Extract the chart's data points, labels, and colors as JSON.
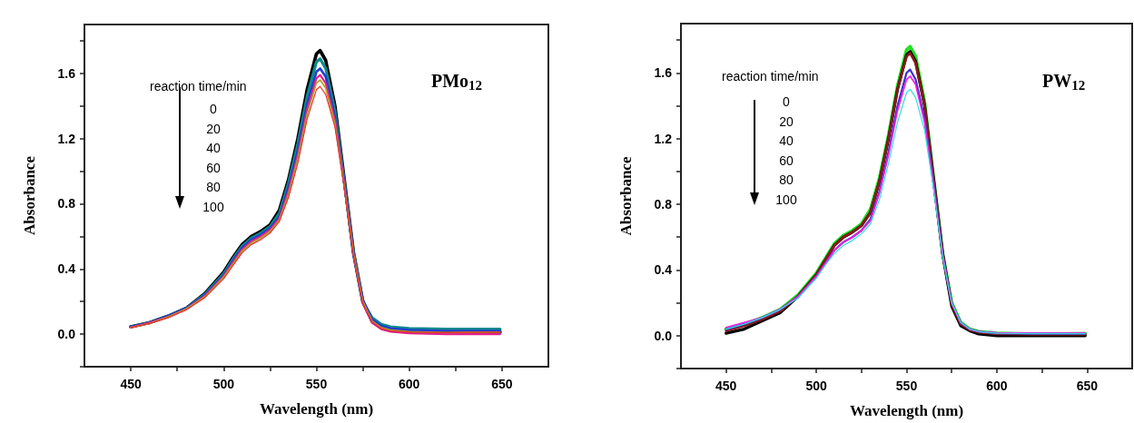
{
  "chart_data": [
    {
      "type": "line",
      "xlabel": "Wavelength (nm)",
      "ylabel": "Absorbance",
      "xlim": [
        425,
        675
      ],
      "ylim": [
        -0.2,
        1.9
      ],
      "xticks": [
        450,
        {
          "value": 475,
          "label": null
        },
        500,
        {
          "value": 525,
          "label": null
        },
        550,
        {
          "value": 575,
          "label": null
        },
        600,
        {
          "value": 625,
          "label": null
        },
        650
      ],
      "yticks": [
        {
          "value": -0.2,
          "label": null
        },
        {
          "value": 0,
          "label": "0.0"
        },
        {
          "value": 0.2,
          "label": null
        },
        {
          "value": 0.4,
          "label": "0.4"
        },
        {
          "value": 0.6,
          "label": null
        },
        {
          "value": 0.8,
          "label": "0.8"
        },
        {
          "value": 1.0,
          "label": null
        },
        {
          "value": 1.2,
          "label": "1.2"
        },
        {
          "value": 1.4,
          "label": null
        },
        {
          "value": 1.6,
          "label": "1.6"
        },
        {
          "value": 1.8,
          "label": null
        }
      ],
      "grid": false,
      "marker": "none",
      "line_style": "solid",
      "annotations": [
        "PMo$_{12}$",
        "reaction time/min",
        "0",
        "20",
        "40",
        "60",
        "80",
        "100"
      ],
      "x": [
        450,
        460,
        470,
        480,
        490,
        500,
        505,
        510,
        515,
        520,
        525,
        530,
        535,
        540,
        545,
        550,
        552,
        555,
        560,
        565,
        570,
        575,
        580,
        585,
        590,
        600,
        620,
        649
      ],
      "series": [
        {
          "color": "#000000",
          "values": [
            0.045,
            0.07,
            0.11,
            0.16,
            0.25,
            0.38,
            0.47,
            0.55,
            0.6,
            0.63,
            0.67,
            0.76,
            0.95,
            1.2,
            1.5,
            1.72,
            1.74,
            1.68,
            1.4,
            0.95,
            0.5,
            0.2,
            0.08,
            0.04,
            0.025,
            0.015,
            0.01,
            0.012
          ]
        },
        {
          "color": "#0e8a8c",
          "values": [
            0.045,
            0.07,
            0.11,
            0.16,
            0.245,
            0.37,
            0.46,
            0.54,
            0.59,
            0.62,
            0.66,
            0.74,
            0.93,
            1.17,
            1.46,
            1.67,
            1.69,
            1.63,
            1.37,
            0.94,
            0.5,
            0.2,
            0.1,
            0.06,
            0.045,
            0.035,
            0.03,
            0.03
          ]
        },
        {
          "color": "#1f3fd0",
          "values": [
            0.045,
            0.07,
            0.11,
            0.16,
            0.24,
            0.36,
            0.45,
            0.53,
            0.58,
            0.61,
            0.65,
            0.72,
            0.9,
            1.13,
            1.41,
            1.61,
            1.63,
            1.58,
            1.33,
            0.93,
            0.49,
            0.21,
            0.09,
            0.05,
            0.035,
            0.025,
            0.02,
            0.02
          ]
        },
        {
          "color": "#e0208c",
          "values": [
            0.04,
            0.07,
            0.105,
            0.155,
            0.235,
            0.355,
            0.44,
            0.52,
            0.57,
            0.6,
            0.64,
            0.71,
            0.88,
            1.1,
            1.38,
            1.57,
            1.59,
            1.54,
            1.31,
            0.92,
            0.49,
            0.19,
            0.07,
            0.03,
            0.015,
            0.005,
            0.0,
            0.0
          ]
        },
        {
          "color": "#b0a020",
          "values": [
            0.04,
            0.065,
            0.105,
            0.155,
            0.23,
            0.35,
            0.43,
            0.51,
            0.56,
            0.59,
            0.63,
            0.7,
            0.86,
            1.08,
            1.35,
            1.54,
            1.56,
            1.51,
            1.29,
            0.91,
            0.49,
            0.2,
            0.08,
            0.04,
            0.025,
            0.015,
            0.01,
            0.012
          ]
        },
        {
          "color": "#e83030",
          "values": [
            0.04,
            0.065,
            0.1,
            0.15,
            0.225,
            0.34,
            0.42,
            0.5,
            0.55,
            0.58,
            0.62,
            0.69,
            0.84,
            1.05,
            1.32,
            1.5,
            1.52,
            1.47,
            1.27,
            0.9,
            0.48,
            0.19,
            0.075,
            0.035,
            0.02,
            0.012,
            0.01,
            0.012
          ]
        }
      ]
    },
    {
      "type": "line",
      "xlabel": "Wavelength (nm)",
      "ylabel": "Absorbance",
      "xlim": [
        425,
        675
      ],
      "ylim": [
        -0.2,
        1.9
      ],
      "xticks": [
        450,
        {
          "value": 475,
          "label": null
        },
        500,
        {
          "value": 525,
          "label": null
        },
        550,
        {
          "value": 575,
          "label": null
        },
        600,
        {
          "value": 625,
          "label": null
        },
        650
      ],
      "yticks": [
        {
          "value": -0.2,
          "label": null
        },
        {
          "value": 0,
          "label": "0.0"
        },
        {
          "value": 0.2,
          "label": null
        },
        {
          "value": 0.4,
          "label": "0.4"
        },
        {
          "value": 0.6,
          "label": null
        },
        {
          "value": 0.8,
          "label": "0.8"
        },
        {
          "value": 1.0,
          "label": null
        },
        {
          "value": 1.2,
          "label": "1.2"
        },
        {
          "value": 1.4,
          "label": null
        },
        {
          "value": 1.6,
          "label": "1.6"
        },
        {
          "value": 1.8,
          "label": null
        }
      ],
      "grid": false,
      "marker": "none",
      "line_style": "solid",
      "annotations": [
        "PW$_{12}$",
        "reaction time/min",
        "0",
        "20",
        "40",
        "60",
        "80",
        "100"
      ],
      "x": [
        450,
        460,
        470,
        480,
        490,
        500,
        505,
        510,
        515,
        520,
        525,
        530,
        535,
        540,
        545,
        550,
        552,
        555,
        560,
        565,
        570,
        575,
        580,
        585,
        590,
        600,
        620,
        649
      ],
      "series": [
        {
          "color": "#20e020",
          "values": [
            0.04,
            0.07,
            0.11,
            0.16,
            0.25,
            0.38,
            0.47,
            0.56,
            0.61,
            0.64,
            0.68,
            0.77,
            0.96,
            1.22,
            1.52,
            1.74,
            1.76,
            1.7,
            1.42,
            0.96,
            0.5,
            0.2,
            0.08,
            0.04,
            0.025,
            0.015,
            0.01,
            0.012
          ]
        },
        {
          "color": "#000000",
          "values": [
            0.015,
            0.04,
            0.09,
            0.14,
            0.24,
            0.37,
            0.46,
            0.55,
            0.6,
            0.63,
            0.67,
            0.75,
            0.94,
            1.2,
            1.5,
            1.71,
            1.73,
            1.67,
            1.4,
            0.95,
            0.5,
            0.18,
            0.06,
            0.03,
            0.01,
            0.0,
            0.0,
            0.0
          ]
        },
        {
          "color": "#8b1a1a",
          "values": [
            0.03,
            0.06,
            0.1,
            0.15,
            0.24,
            0.37,
            0.46,
            0.55,
            0.6,
            0.63,
            0.67,
            0.75,
            0.94,
            1.2,
            1.5,
            1.7,
            1.72,
            1.66,
            1.4,
            0.95,
            0.5,
            0.19,
            0.07,
            0.035,
            0.02,
            0.01,
            0.008,
            0.008
          ]
        },
        {
          "color": "#3a30d0",
          "values": [
            0.04,
            0.07,
            0.11,
            0.16,
            0.24,
            0.36,
            0.44,
            0.52,
            0.57,
            0.6,
            0.64,
            0.71,
            0.88,
            1.12,
            1.4,
            1.6,
            1.62,
            1.56,
            1.32,
            0.92,
            0.49,
            0.2,
            0.08,
            0.04,
            0.025,
            0.015,
            0.012,
            0.012
          ]
        },
        {
          "color": "#f020e0",
          "values": [
            0.05,
            0.08,
            0.11,
            0.16,
            0.24,
            0.36,
            0.44,
            0.52,
            0.57,
            0.6,
            0.64,
            0.7,
            0.87,
            1.1,
            1.37,
            1.56,
            1.58,
            1.53,
            1.3,
            0.91,
            0.49,
            0.2,
            0.08,
            0.04,
            0.025,
            0.018,
            0.015,
            0.015
          ]
        },
        {
          "color": "#30e0e0",
          "values": [
            0.04,
            0.07,
            0.11,
            0.16,
            0.23,
            0.35,
            0.43,
            0.5,
            0.55,
            0.58,
            0.62,
            0.68,
            0.83,
            1.05,
            1.3,
            1.48,
            1.5,
            1.45,
            1.25,
            0.89,
            0.48,
            0.2,
            0.08,
            0.04,
            0.025,
            0.015,
            0.012,
            0.012
          ]
        }
      ]
    }
  ]
}
